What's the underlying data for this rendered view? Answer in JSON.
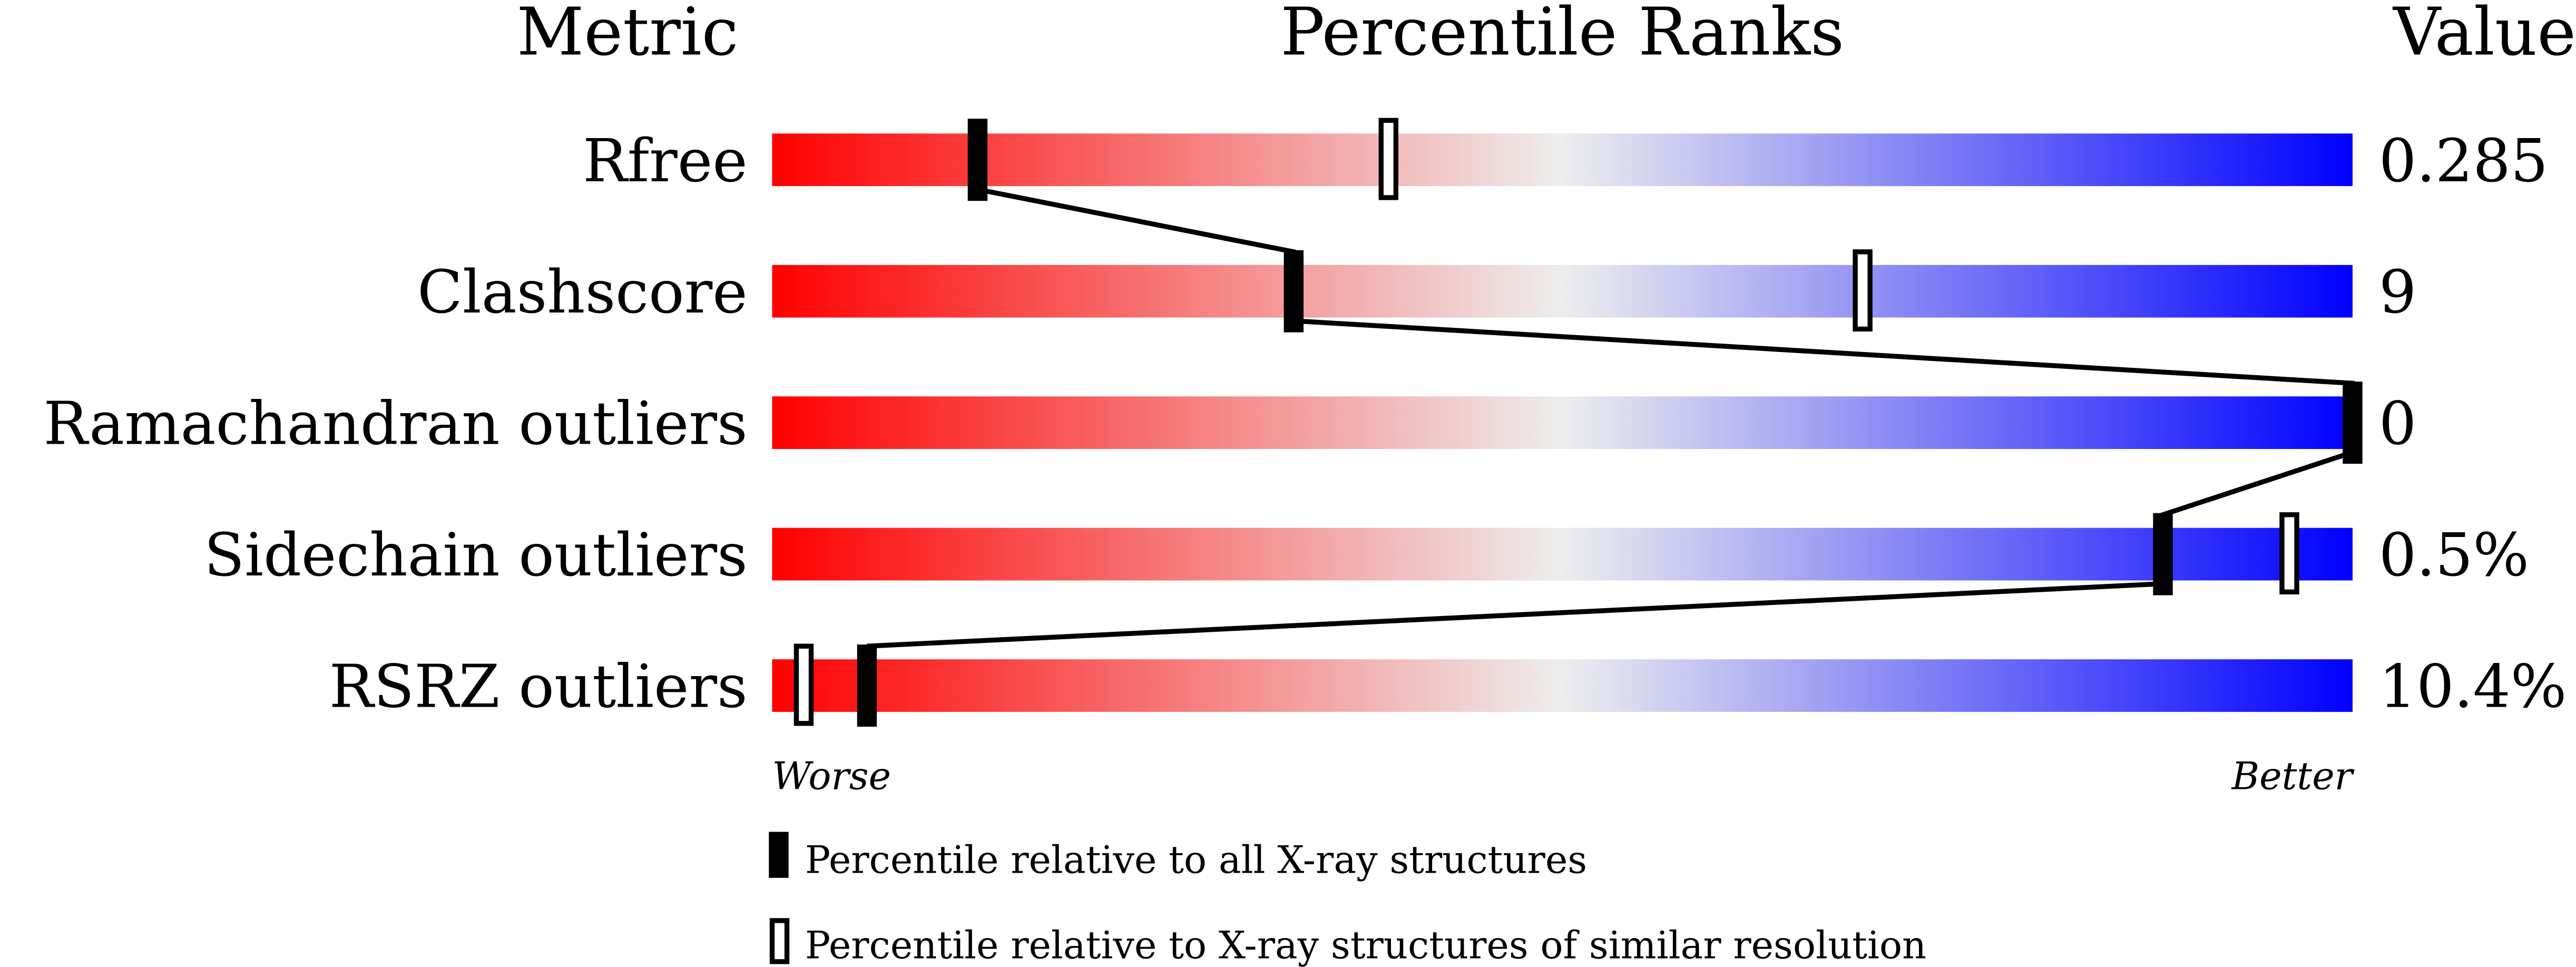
{
  "chart_data": {
    "type": "percentile-bar",
    "headers": {
      "metric": "Metric",
      "ranks": "Percentile Ranks",
      "value": "Value"
    },
    "axis": {
      "min": 0,
      "max": 100,
      "left_label": "Worse",
      "right_label": "Better"
    },
    "gradient_colors": [
      "#ff0000",
      "#eeeeee",
      "#0000ff"
    ],
    "rows": [
      {
        "metric": "Rfree",
        "value": "0.285",
        "all": 13,
        "similar": 39
      },
      {
        "metric": "Clashscore",
        "value": "9",
        "all": 33,
        "similar": 69
      },
      {
        "metric": "Ramachandran outliers",
        "value": "0",
        "all": 100,
        "similar": null
      },
      {
        "metric": "Sidechain outliers",
        "value": "0.5%",
        "all": 88,
        "similar": 96
      },
      {
        "metric": "RSRZ outliers",
        "value": "10.4%",
        "all": 6,
        "similar": 2
      }
    ],
    "legend": {
      "all": "Percentile relative to all X-ray structures",
      "similar": "Percentile relative to X-ray structures of similar resolution"
    }
  }
}
